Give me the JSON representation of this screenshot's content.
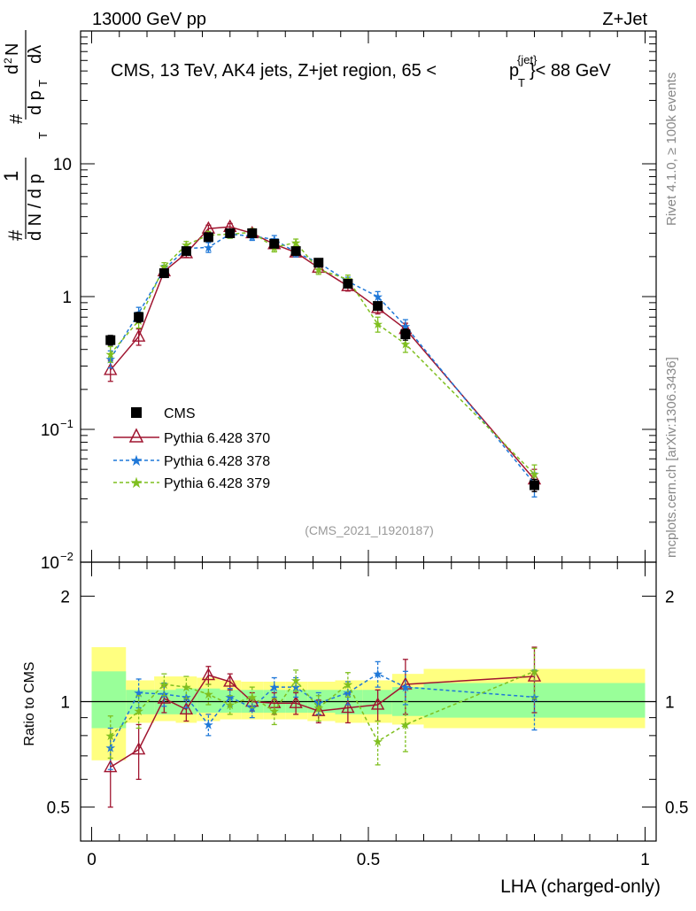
{
  "header": {
    "left_label": "13000 GeV pp",
    "right_label": "Z+Jet"
  },
  "side_labels": {
    "rivet": "Rivet 4.1.0, ≥ 100k events",
    "mcplots": "mcplots.cern.ch [arXiv:1306.3436]"
  },
  "colors": {
    "cms": "#000000",
    "p370": "#a01530",
    "p378": "#1f78d8",
    "p379": "#7fbf1f",
    "band_outer": "#ffff80",
    "band_inner": "#99ff99"
  },
  "chart_data": [
    {
      "type": "line",
      "scale": "log",
      "title_parts": {
        "main": "CMS, 13 TeV, AK4 jets, Z+jet region, 65 <",
        "p": "p",
        "sup": "{jet}",
        "sub": "T",
        "tail": "}< 88 GeV"
      },
      "ylabel_parts": {
        "hash": "#",
        "one": "1",
        "dn": "d N / d p",
        "dn_sub": "T",
        "hash2": "#",
        "d2n": "d",
        "d2n_sup": "2",
        "d2n_n": "N",
        "dpt": "d p",
        "dpt_sub": "T",
        "dlambda": "dλ"
      },
      "ylim": [
        0.01,
        100
      ],
      "y_ticks": [
        {
          "value": 0.01,
          "base": "10",
          "exp": "−2"
        },
        {
          "value": 0.1,
          "base": "10",
          "exp": "−1"
        },
        {
          "value": 1,
          "label": "1"
        },
        {
          "value": 10,
          "label": "10"
        }
      ],
      "watermark": "(CMS_2021_I1920187)",
      "legend_position": "lower-left",
      "x": [
        0.034,
        0.085,
        0.131,
        0.171,
        0.211,
        0.25,
        0.29,
        0.33,
        0.369,
        0.41,
        0.463,
        0.517,
        0.567,
        0.8
      ],
      "series": [
        {
          "name": "CMS",
          "key": "cms",
          "values": [
            0.47,
            0.7,
            1.5,
            2.2,
            2.8,
            3.0,
            3.0,
            2.5,
            2.2,
            1.8,
            1.25,
            0.85,
            0.52,
            0.038
          ],
          "errors": [
            0.04,
            0.06,
            0.1,
            0.12,
            0.15,
            0.15,
            0.15,
            0.13,
            0.12,
            0.1,
            0.08,
            0.06,
            0.05,
            0.004
          ]
        },
        {
          "name": "Pythia 6.428 370",
          "key": "p370",
          "values": [
            0.28,
            0.5,
            1.55,
            2.12,
            3.25,
            3.35,
            3.0,
            2.48,
            2.15,
            1.65,
            1.2,
            0.82,
            0.57,
            0.042
          ],
          "errors": [
            0.05,
            0.07,
            0.12,
            0.15,
            0.2,
            0.2,
            0.2,
            0.18,
            0.16,
            0.13,
            0.1,
            0.08,
            0.06,
            0.008
          ]
        },
        {
          "name": "Pythia 6.428 378",
          "key": "p378",
          "values": [
            0.34,
            0.75,
            1.6,
            2.3,
            2.35,
            2.95,
            2.85,
            2.7,
            2.15,
            1.8,
            1.3,
            1.0,
            0.6,
            0.039
          ],
          "errors": [
            0.05,
            0.08,
            0.12,
            0.15,
            0.2,
            0.2,
            0.2,
            0.18,
            0.16,
            0.13,
            0.1,
            0.09,
            0.07,
            0.008
          ]
        },
        {
          "name": "Pythia 6.428 379",
          "key": "p379",
          "values": [
            0.37,
            0.66,
            1.68,
            2.45,
            2.9,
            2.95,
            3.05,
            2.35,
            2.55,
            1.6,
            1.35,
            0.62,
            0.44,
            0.046
          ],
          "errors": [
            0.05,
            0.08,
            0.12,
            0.15,
            0.2,
            0.2,
            0.2,
            0.18,
            0.16,
            0.13,
            0.1,
            0.08,
            0.06,
            0.008
          ]
        }
      ]
    },
    {
      "type": "line",
      "scale": "log",
      "ylabel": "Ratio to CMS",
      "xlabel": "LHA (charged-only)",
      "ylim": [
        0.4,
        2.5
      ],
      "xlim": [
        -0.02,
        1.02
      ],
      "x_ticks": [
        {
          "value": 0,
          "label": "0"
        },
        {
          "value": 0.5,
          "label": "0.5"
        },
        {
          "value": 1,
          "label": "1"
        }
      ],
      "y_ticks": [
        {
          "value": 0.5,
          "label": "0.5"
        },
        {
          "value": 1,
          "label": "1"
        },
        {
          "value": 2,
          "label": "2"
        }
      ],
      "bin_edges": [
        0,
        0.062,
        0.113,
        0.152,
        0.19,
        0.232,
        0.27,
        0.31,
        0.35,
        0.39,
        0.44,
        0.49,
        0.543,
        0.6,
        1.0
      ],
      "band_outer": [
        [
          0.68,
          1.43
        ],
        [
          0.87,
          1.15
        ],
        [
          0.88,
          1.18
        ],
        [
          0.87,
          1.18
        ],
        [
          0.88,
          1.17
        ],
        [
          0.89,
          1.15
        ],
        [
          0.89,
          1.14
        ],
        [
          0.89,
          1.14
        ],
        [
          0.89,
          1.14
        ],
        [
          0.88,
          1.14
        ],
        [
          0.87,
          1.15
        ],
        [
          0.87,
          1.15
        ],
        [
          0.86,
          1.2
        ],
        [
          0.84,
          1.24
        ]
      ],
      "band_inner": [
        [
          0.84,
          1.22
        ],
        [
          0.92,
          1.08
        ],
        [
          0.92,
          1.08
        ],
        [
          0.92,
          1.09
        ],
        [
          0.93,
          1.09
        ],
        [
          0.93,
          1.08
        ],
        [
          0.93,
          1.08
        ],
        [
          0.93,
          1.08
        ],
        [
          0.93,
          1.08
        ],
        [
          0.93,
          1.08
        ],
        [
          0.92,
          1.08
        ],
        [
          0.92,
          1.08
        ],
        [
          0.91,
          1.1
        ],
        [
          0.9,
          1.13
        ]
      ],
      "x": [
        0.034,
        0.085,
        0.131,
        0.171,
        0.211,
        0.25,
        0.29,
        0.33,
        0.369,
        0.41,
        0.463,
        0.517,
        0.567,
        0.8
      ],
      "series": [
        {
          "name": "Pythia 6.428 370",
          "key": "p370",
          "values": [
            0.65,
            0.73,
            1.02,
            0.95,
            1.19,
            1.14,
            1.0,
            0.99,
            0.99,
            0.94,
            0.96,
            0.98,
            1.12,
            1.18
          ],
          "errors": [
            0.15,
            0.13,
            0.09,
            0.07,
            0.07,
            0.06,
            0.06,
            0.07,
            0.07,
            0.07,
            0.09,
            0.1,
            0.2,
            0.25
          ]
        },
        {
          "name": "Pythia 6.428 378",
          "key": "p378",
          "values": [
            0.74,
            1.06,
            1.05,
            1.03,
            0.86,
            1.03,
            0.96,
            1.1,
            1.1,
            0.99,
            1.06,
            1.2,
            1.1,
            1.03
          ],
          "errors": [
            0.1,
            0.1,
            0.08,
            0.07,
            0.06,
            0.06,
            0.06,
            0.07,
            0.07,
            0.07,
            0.08,
            0.1,
            0.12,
            0.2
          ]
        },
        {
          "name": "Pythia 6.428 379",
          "key": "p379",
          "values": [
            0.8,
            0.94,
            1.12,
            1.1,
            1.05,
            0.98,
            1.03,
            0.94,
            1.15,
            0.96,
            1.12,
            0.77,
            0.86,
            1.22
          ],
          "errors": [
            0.11,
            0.1,
            0.08,
            0.08,
            0.07,
            0.06,
            0.07,
            0.08,
            0.08,
            0.08,
            0.09,
            0.11,
            0.14,
            0.2
          ]
        }
      ]
    }
  ]
}
